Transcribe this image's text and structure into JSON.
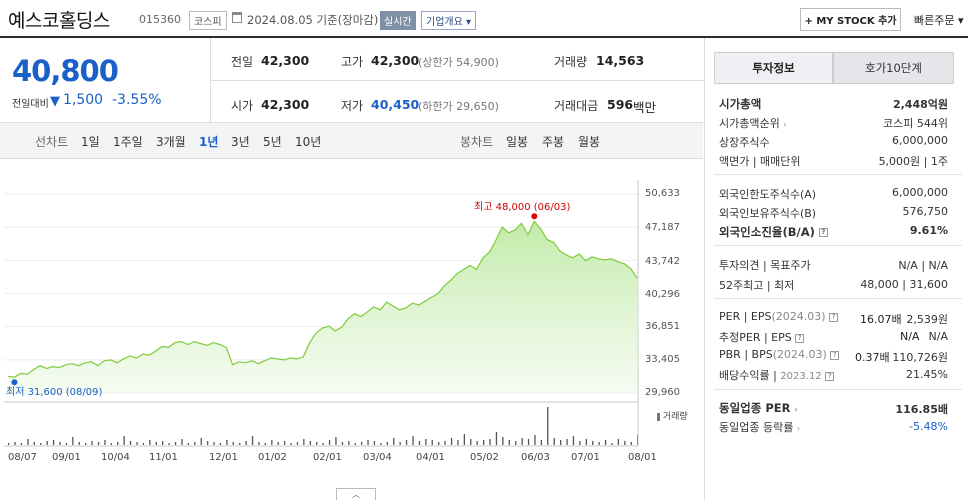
{
  "header": {
    "company_name": "예스코홀딩스",
    "code": "015360",
    "market": "코스피",
    "date_info": "2024.08.05 기준(장마감)",
    "realtime_badge": "실시간",
    "company_overview": "기업개요",
    "my_stock_button": "+ MY STOCK 추가",
    "quick_order": "빠른주문"
  },
  "quote": {
    "price": "40,800",
    "change_label": "전일대비",
    "change_amount": "1,500",
    "change_pct": "-3.55%",
    "prev_label": "전일",
    "prev_value": "42,300",
    "high_label": "고가",
    "high_value": "42,300",
    "upper_limit": "(상한가 54,900)",
    "volume_label": "거래량",
    "volume_value": "14,563",
    "open_label": "시가",
    "open_value": "42,300",
    "low_label": "저가",
    "low_value": "40,450",
    "lower_limit": "(하한가 29,650)",
    "amount_label": "거래대금",
    "amount_value": "596",
    "amount_unit": "백만"
  },
  "chart_tabs": {
    "line_label": "선차트",
    "line_items": [
      "1일",
      "1주일",
      "3개월",
      "1년",
      "3년",
      "5년",
      "10년"
    ],
    "candle_label": "봉차트",
    "candle_items": [
      "일봉",
      "주봉",
      "월봉"
    ],
    "active": "1년"
  },
  "chart_data": {
    "type": "area",
    "y_ticks": [
      "50,633",
      "47,187",
      "43,742",
      "40,296",
      "36,851",
      "33,405",
      "29,960"
    ],
    "ylim": [
      29960,
      50633
    ],
    "x_ticks": [
      "08/07",
      "09/01",
      "10/04",
      "11/01",
      "12/01",
      "01/02",
      "02/01",
      "03/04",
      "04/01",
      "05/02",
      "06/03",
      "07/01",
      "08/01"
    ],
    "max_annotation": "최고 48,000 (06/03)",
    "min_annotation": "최저 31,600 (08/09)",
    "volume_label": "거래량",
    "series": [
      {
        "values": [
          31700,
          31600,
          32000,
          31900,
          32400,
          32800,
          32500,
          32700,
          32600,
          32900,
          33000,
          32800,
          33100,
          33200,
          32800,
          33300,
          33400,
          33100,
          33500,
          33800,
          33600,
          34000,
          33900,
          34300,
          34800,
          34700,
          35200,
          35300,
          35000,
          35300,
          35100,
          34900,
          35200,
          35000,
          34700,
          32900,
          33200,
          33100,
          33300,
          33000,
          33300,
          33600,
          33500,
          33400,
          33600,
          33500,
          33700,
          35200,
          36200,
          36700,
          36900,
          36400,
          36800,
          37700,
          38200,
          37900,
          38400,
          38900,
          38600,
          39400,
          39000,
          38600,
          38800,
          39300,
          39100,
          39500,
          39900,
          40300,
          41100,
          41700,
          42400,
          42800,
          43200,
          42800,
          44000,
          44600,
          45800,
          47200,
          46600,
          46900,
          47600,
          46400,
          47800,
          47000,
          45900,
          45600,
          44700,
          44300,
          44000,
          44400,
          43700,
          44100,
          43900,
          43800,
          43900,
          43600,
          43400,
          42900,
          41900
        ]
      }
    ],
    "volume": [
      2,
      3,
      2,
      6,
      3,
      2,
      4,
      5,
      3,
      2,
      8,
      3,
      2,
      4,
      3,
      5,
      2,
      3,
      9,
      4,
      3,
      2,
      5,
      3,
      4,
      2,
      3,
      6,
      2,
      3,
      7,
      4,
      3,
      2,
      5,
      3,
      2,
      4,
      9,
      3,
      2,
      5,
      3,
      4,
      2,
      3,
      6,
      4,
      3,
      2,
      5,
      8,
      3,
      4,
      2,
      3,
      5,
      4,
      2,
      3,
      7,
      3,
      5,
      9,
      4,
      6,
      5,
      3,
      4,
      7,
      5,
      11,
      6,
      4,
      5,
      6,
      13,
      8,
      5,
      4,
      7,
      6,
      10,
      5,
      38,
      7,
      5,
      6,
      9,
      4,
      6,
      4,
      3,
      5,
      2,
      6,
      4,
      3,
      10
    ]
  },
  "right_panel": {
    "tab_active": "투자정보",
    "tab_other": "호가10단계",
    "section1": [
      {
        "label": "시가총액",
        "value": "2,448억원"
      },
      {
        "label": "시가총액순위",
        "value": "코스피 544위"
      },
      {
        "label": "상장주식수",
        "value": "6,000,000"
      },
      {
        "label": "액면가 | 매매단위",
        "value": "5,000원 | 1주"
      }
    ],
    "section2": [
      {
        "label": "외국인한도주식수(A)",
        "value": "6,000,000"
      },
      {
        "label": "외국인보유주식수(B)",
        "value": "576,750"
      },
      {
        "label": "외국인소진율(B/A)",
        "value": "9.61%"
      }
    ],
    "section3": [
      {
        "label": "투자의견 | 목표주가",
        "value": "N/A | N/A"
      },
      {
        "label": "52주최고 | 최저",
        "value": "48,000 | 31,600"
      }
    ],
    "section4": [
      {
        "label": "PER | EPS",
        "period": "(2024.03)",
        "value1": "16.07배",
        "value2": "2,539원"
      },
      {
        "label": "추정PER | EPS",
        "value1": "N/A",
        "value2": "N/A"
      },
      {
        "label": "PBR | BPS",
        "period": "(2024.03)",
        "value1": "0.37배",
        "value2": "110,726원"
      },
      {
        "label": "배당수익률",
        "period": "2023.12",
        "value": "21.45%"
      }
    ],
    "section5": [
      {
        "label": "동일업종 PER",
        "value": "116.85배"
      },
      {
        "label": "동일업종 등락률",
        "value": "-5.48%"
      }
    ]
  },
  "colors": {
    "down": "#1a60c9",
    "line": "#7fcb3a",
    "max_marker": "#e00000"
  }
}
